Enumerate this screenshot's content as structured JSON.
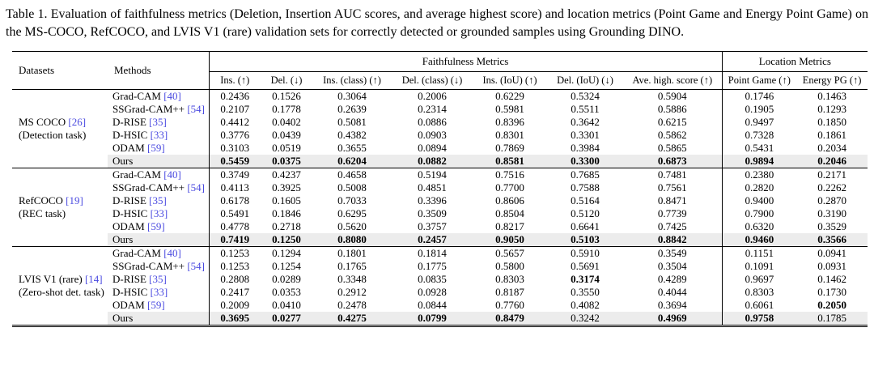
{
  "caption": "Table 1. Evaluation of faithfulness metrics (Deletion, Insertion AUC scores, and average highest score) and location metrics (Point Game and Energy Point Game) on the MS-COCO, RefCOCO, and LVIS V1 (rare) validation sets for correctly detected or grounded samples using Grounding DINO.",
  "colors": {
    "citation_link": "#4a4ae0",
    "highlight_row": "#ececec"
  },
  "table": {
    "col_headers_top": {
      "datasets": "Datasets",
      "methods": "Methods",
      "faithfulness": "Faithfulness Metrics",
      "location": "Location Metrics"
    },
    "sub_headers": [
      "Ins. (↑)",
      "Del. (↓)",
      "Ins. (class) (↑)",
      "Del. (class) (↓)",
      "Ins. (IoU) (↑)",
      "Del. (IoU) (↓)",
      "Ave. high. score (↑)",
      "Point Game (↑)",
      "Energy PG (↑)"
    ],
    "higher_is_better": [
      true,
      false,
      true,
      false,
      true,
      false,
      true,
      true,
      true
    ],
    "groups": [
      {
        "dataset": {
          "name": "MS COCO",
          "cite": "[26]",
          "task": "(Detection task)"
        },
        "rows": [
          {
            "method": "Grad-CAM",
            "cite": "[40]",
            "highlight": false,
            "values": [
              "0.2436",
              "0.1526",
              "0.3064",
              "0.2006",
              "0.6229",
              "0.5324",
              "0.5904",
              "0.1746",
              "0.1463"
            ]
          },
          {
            "method": "SSGrad-CAM++",
            "cite": "[54]",
            "highlight": false,
            "values": [
              "0.2107",
              "0.1778",
              "0.2639",
              "0.2314",
              "0.5981",
              "0.5511",
              "0.5886",
              "0.1905",
              "0.1293"
            ]
          },
          {
            "method": "D-RISE",
            "cite": "[35]",
            "highlight": false,
            "values": [
              "0.4412",
              "0.0402",
              "0.5081",
              "0.0886",
              "0.8396",
              "0.3642",
              "0.6215",
              "0.9497",
              "0.1850"
            ]
          },
          {
            "method": "D-HSIC",
            "cite": "[33]",
            "highlight": false,
            "values": [
              "0.3776",
              "0.0439",
              "0.4382",
              "0.0903",
              "0.8301",
              "0.3301",
              "0.5862",
              "0.7328",
              "0.1861"
            ]
          },
          {
            "method": "ODAM",
            "cite": "[59]",
            "highlight": false,
            "values": [
              "0.3103",
              "0.0519",
              "0.3655",
              "0.0894",
              "0.7869",
              "0.3984",
              "0.5865",
              "0.5431",
              "0.2034"
            ]
          },
          {
            "method": "Ours",
            "cite": "",
            "highlight": true,
            "values": [
              "0.5459",
              "0.0375",
              "0.6204",
              "0.0882",
              "0.8581",
              "0.3300",
              "0.6873",
              "0.9894",
              "0.2046"
            ]
          }
        ]
      },
      {
        "dataset": {
          "name": "RefCOCO",
          "cite": "[19]",
          "task": "(REC task)"
        },
        "rows": [
          {
            "method": "Grad-CAM",
            "cite": "[40]",
            "highlight": false,
            "values": [
              "0.3749",
              "0.4237",
              "0.4658",
              "0.5194",
              "0.7516",
              "0.7685",
              "0.7481",
              "0.2380",
              "0.2171"
            ]
          },
          {
            "method": "SSGrad-CAM++",
            "cite": "[54]",
            "highlight": false,
            "values": [
              "0.4113",
              "0.3925",
              "0.5008",
              "0.4851",
              "0.7700",
              "0.7588",
              "0.7561",
              "0.2820",
              "0.2262"
            ]
          },
          {
            "method": "D-RISE",
            "cite": "[35]",
            "highlight": false,
            "values": [
              "0.6178",
              "0.1605",
              "0.7033",
              "0.3396",
              "0.8606",
              "0.5164",
              "0.8471",
              "0.9400",
              "0.2870"
            ]
          },
          {
            "method": "D-HSIC",
            "cite": "[33]",
            "highlight": false,
            "values": [
              "0.5491",
              "0.1846",
              "0.6295",
              "0.3509",
              "0.8504",
              "0.5120",
              "0.7739",
              "0.7900",
              "0.3190"
            ]
          },
          {
            "method": "ODAM",
            "cite": "[59]",
            "highlight": false,
            "values": [
              "0.4778",
              "0.2718",
              "0.5620",
              "0.3757",
              "0.8217",
              "0.6641",
              "0.7425",
              "0.6320",
              "0.3529"
            ]
          },
          {
            "method": "Ours",
            "cite": "",
            "highlight": true,
            "values": [
              "0.7419",
              "0.1250",
              "0.8080",
              "0.2457",
              "0.9050",
              "0.5103",
              "0.8842",
              "0.9460",
              "0.3566"
            ]
          }
        ]
      },
      {
        "dataset": {
          "name": "LVIS V1 (rare)",
          "cite": "[14]",
          "task": "(Zero-shot det. task)"
        },
        "rows": [
          {
            "method": "Grad-CAM",
            "cite": "[40]",
            "highlight": false,
            "values": [
              "0.1253",
              "0.1294",
              "0.1801",
              "0.1814",
              "0.5657",
              "0.5910",
              "0.3549",
              "0.1151",
              "0.0941"
            ]
          },
          {
            "method": "SSGrad-CAM++",
            "cite": "[54]",
            "highlight": false,
            "values": [
              "0.1253",
              "0.1254",
              "0.1765",
              "0.1775",
              "0.5800",
              "0.5691",
              "0.3504",
              "0.1091",
              "0.0931"
            ]
          },
          {
            "method": "D-RISE",
            "cite": "[35]",
            "highlight": false,
            "values": [
              "0.2808",
              "0.0289",
              "0.3348",
              "0.0835",
              "0.8303",
              "0.3174",
              "0.4289",
              "0.9697",
              "0.1462"
            ]
          },
          {
            "method": "D-HSIC",
            "cite": "[33]",
            "highlight": false,
            "values": [
              "0.2417",
              "0.0353",
              "0.2912",
              "0.0928",
              "0.8187",
              "0.3550",
              "0.4044",
              "0.8303",
              "0.1730"
            ]
          },
          {
            "method": "ODAM",
            "cite": "[59]",
            "highlight": false,
            "values": [
              "0.2009",
              "0.0410",
              "0.2478",
              "0.0844",
              "0.7760",
              "0.4082",
              "0.3694",
              "0.6061",
              "0.2050"
            ]
          },
          {
            "method": "Ours",
            "cite": "",
            "highlight": true,
            "values": [
              "0.3695",
              "0.0277",
              "0.4275",
              "0.0799",
              "0.8479",
              "0.3242",
              "0.4969",
              "0.9758",
              "0.1785"
            ]
          }
        ]
      }
    ]
  }
}
